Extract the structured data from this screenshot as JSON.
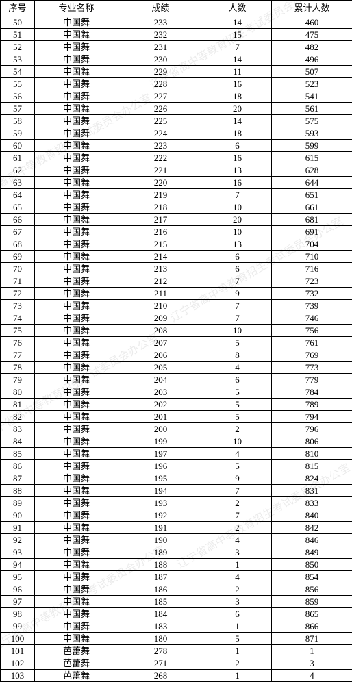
{
  "table": {
    "columns": [
      "序号",
      "专业名称",
      "成绩",
      "人数",
      "累计人数"
    ],
    "rows": [
      [
        50,
        "中国舞",
        233,
        14,
        460
      ],
      [
        51,
        "中国舞",
        232,
        15,
        475
      ],
      [
        52,
        "中国舞",
        231,
        7,
        482
      ],
      [
        53,
        "中国舞",
        230,
        14,
        496
      ],
      [
        54,
        "中国舞",
        229,
        11,
        507
      ],
      [
        55,
        "中国舞",
        228,
        16,
        523
      ],
      [
        56,
        "中国舞",
        227,
        18,
        541
      ],
      [
        57,
        "中国舞",
        226,
        20,
        561
      ],
      [
        58,
        "中国舞",
        225,
        14,
        575
      ],
      [
        59,
        "中国舞",
        224,
        18,
        593
      ],
      [
        60,
        "中国舞",
        223,
        6,
        599
      ],
      [
        61,
        "中国舞",
        222,
        16,
        615
      ],
      [
        62,
        "中国舞",
        221,
        13,
        628
      ],
      [
        63,
        "中国舞",
        220,
        16,
        644
      ],
      [
        64,
        "中国舞",
        219,
        7,
        651
      ],
      [
        65,
        "中国舞",
        218,
        10,
        661
      ],
      [
        66,
        "中国舞",
        217,
        20,
        681
      ],
      [
        67,
        "中国舞",
        216,
        10,
        691
      ],
      [
        68,
        "中国舞",
        215,
        13,
        704
      ],
      [
        69,
        "中国舞",
        214,
        6,
        710
      ],
      [
        70,
        "中国舞",
        213,
        6,
        716
      ],
      [
        71,
        "中国舞",
        212,
        7,
        723
      ],
      [
        72,
        "中国舞",
        211,
        9,
        732
      ],
      [
        73,
        "中国舞",
        210,
        7,
        739
      ],
      [
        74,
        "中国舞",
        209,
        7,
        746
      ],
      [
        75,
        "中国舞",
        208,
        10,
        756
      ],
      [
        76,
        "中国舞",
        207,
        5,
        761
      ],
      [
        77,
        "中国舞",
        206,
        8,
        769
      ],
      [
        78,
        "中国舞",
        205,
        4,
        773
      ],
      [
        79,
        "中国舞",
        204,
        6,
        779
      ],
      [
        80,
        "中国舞",
        203,
        5,
        784
      ],
      [
        81,
        "中国舞",
        202,
        5,
        789
      ],
      [
        82,
        "中国舞",
        201,
        5,
        794
      ],
      [
        83,
        "中国舞",
        200,
        2,
        796
      ],
      [
        84,
        "中国舞",
        199,
        10,
        806
      ],
      [
        85,
        "中国舞",
        197,
        4,
        810
      ],
      [
        86,
        "中国舞",
        196,
        5,
        815
      ],
      [
        87,
        "中国舞",
        195,
        9,
        824
      ],
      [
        88,
        "中国舞",
        194,
        7,
        831
      ],
      [
        89,
        "中国舞",
        193,
        2,
        833
      ],
      [
        90,
        "中国舞",
        192,
        7,
        840
      ],
      [
        91,
        "中国舞",
        191,
        2,
        842
      ],
      [
        92,
        "中国舞",
        190,
        4,
        846
      ],
      [
        93,
        "中国舞",
        189,
        3,
        849
      ],
      [
        94,
        "中国舞",
        188,
        1,
        850
      ],
      [
        95,
        "中国舞",
        187,
        4,
        854
      ],
      [
        96,
        "中国舞",
        186,
        2,
        856
      ],
      [
        97,
        "中国舞",
        185,
        3,
        859
      ],
      [
        98,
        "中国舞",
        184,
        6,
        865
      ],
      [
        99,
        "中国舞",
        183,
        1,
        866
      ],
      [
        100,
        "中国舞",
        180,
        5,
        871
      ],
      [
        101,
        "芭蕾舞",
        278,
        1,
        1
      ],
      [
        102,
        "芭蕾舞",
        271,
        2,
        3
      ],
      [
        103,
        "芭蕾舞",
        268,
        1,
        4
      ]
    ]
  },
  "watermark_text": "辽宁省高中等教育招生考试委员会办公室",
  "colors": {
    "background": "#ffffff",
    "border": "#000000",
    "text": "#000000",
    "watermark": "rgba(0,0,0,0.08)"
  }
}
